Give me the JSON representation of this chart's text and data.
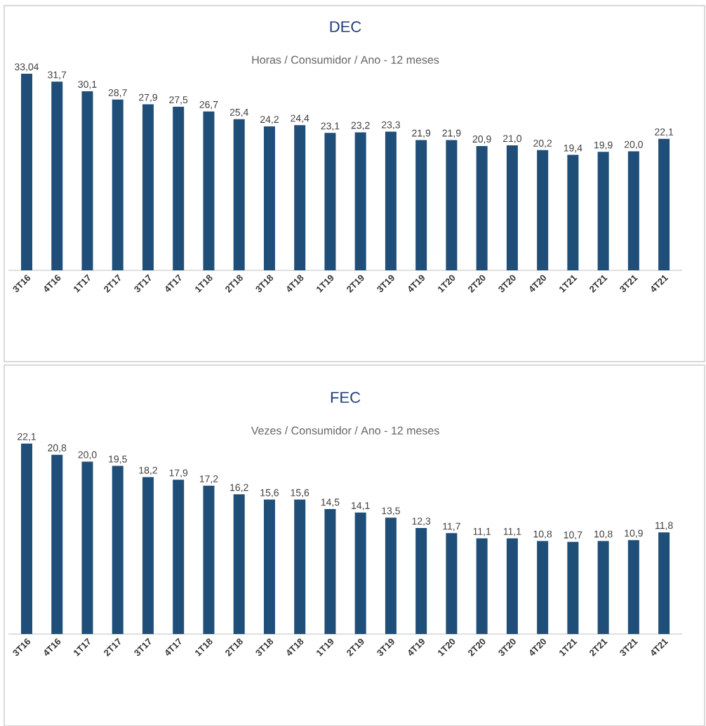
{
  "chart_data": [
    {
      "type": "bar",
      "title": "DEC",
      "subtitle": "Horas /  Consumidor / Ano - 12 meses",
      "categories": [
        "3T16",
        "4T16",
        "1T17",
        "2T17",
        "3T17",
        "4T17",
        "1T18",
        "2T18",
        "3T18",
        "4T18",
        "1T19",
        "2T19",
        "3T19",
        "4T19",
        "1T20",
        "2T20",
        "3T20",
        "4T20",
        "1T21",
        "2T21",
        "3T21",
        "4T21"
      ],
      "values": [
        33.04,
        31.7,
        30.1,
        28.7,
        27.9,
        27.5,
        26.7,
        25.4,
        24.2,
        24.4,
        23.1,
        23.2,
        23.3,
        21.9,
        21.9,
        20.9,
        21.0,
        20.2,
        19.4,
        19.9,
        20.0,
        22.1
      ],
      "value_labels": [
        "33,04",
        "31,7",
        "30,1",
        "28,7",
        "27,9",
        "27,5",
        "26,7",
        "25,4",
        "24,2",
        "24,4",
        "23,1",
        "23,2",
        "23,3",
        "21,9",
        "21,9",
        "20,9",
        "21,0",
        "20,2",
        "19,4",
        "19,9",
        "20,0",
        "22,1"
      ],
      "color": "#1f4e79",
      "tick_labels": "x"
    },
    {
      "type": "bar",
      "title": "FEC",
      "subtitle": "Vezes / Consumidor / Ano - 12 meses",
      "categories": [
        "3T16",
        "4T16",
        "1T17",
        "2T17",
        "3T17",
        "4T17",
        "1T18",
        "2T18",
        "3T18",
        "4T18",
        "1T19",
        "2T19",
        "3T19",
        "4T19",
        "1T20",
        "2T20",
        "3T20",
        "4T20",
        "1T21",
        "2T21",
        "3T21",
        "4T21"
      ],
      "values": [
        22.1,
        20.8,
        20.0,
        19.5,
        18.2,
        17.9,
        17.2,
        16.2,
        15.6,
        15.6,
        14.5,
        14.1,
        13.5,
        12.3,
        11.7,
        11.1,
        11.1,
        10.8,
        10.7,
        10.8,
        10.9,
        11.8
      ],
      "value_labels": [
        "22,1",
        "20,8",
        "20,0",
        "19,5",
        "18,2",
        "17,9",
        "17,2",
        "16,2",
        "15,6",
        "15,6",
        "14,5",
        "14,1",
        "13,5",
        "12,3",
        "11,7",
        "11,1",
        "11,1",
        "10,8",
        "10,7",
        "10,8",
        "10,9",
        "11,8"
      ],
      "color": "#1f4e79",
      "tick_labels": "x"
    }
  ]
}
